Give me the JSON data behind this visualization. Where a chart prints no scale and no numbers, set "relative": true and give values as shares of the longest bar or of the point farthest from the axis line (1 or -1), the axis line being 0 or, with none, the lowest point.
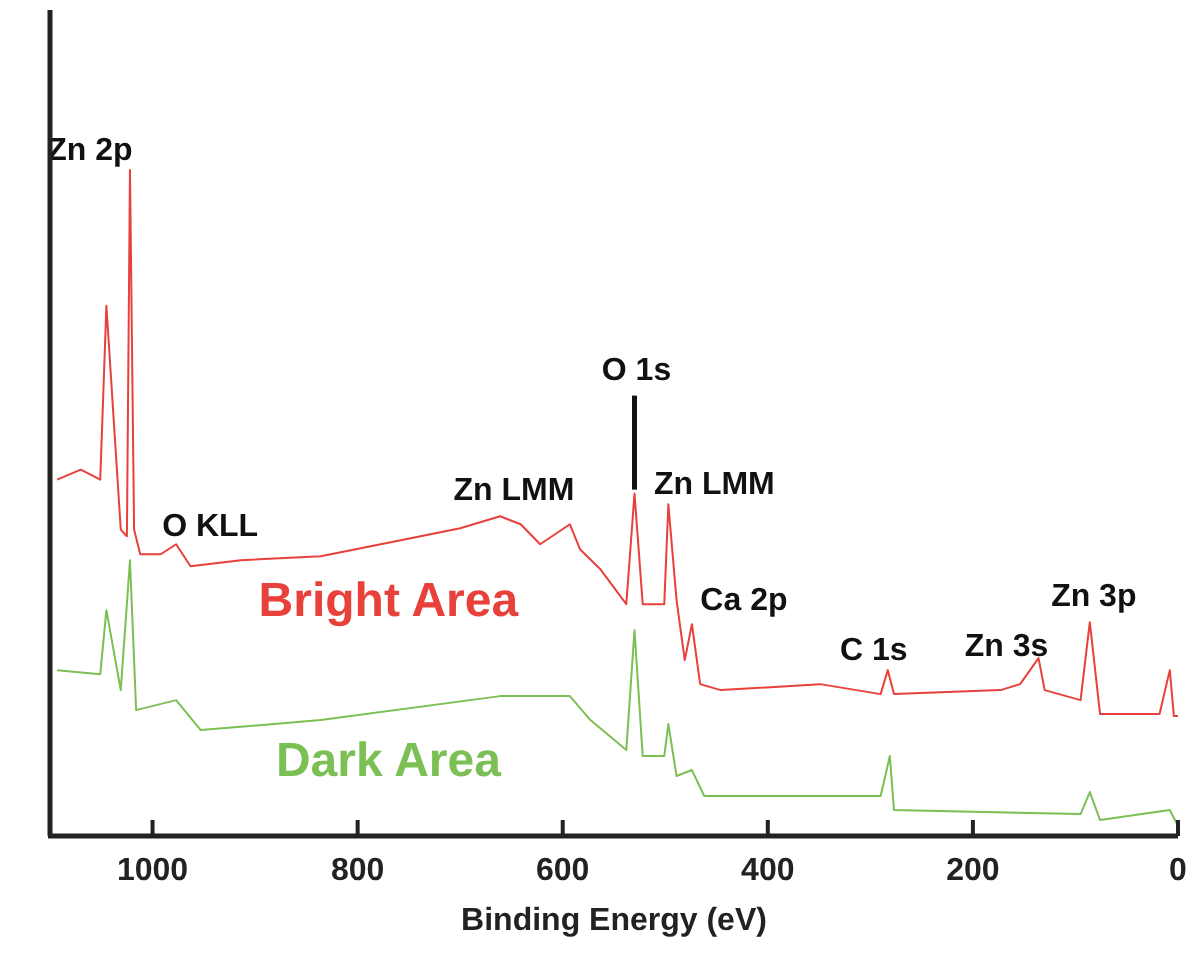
{
  "chart_data": {
    "type": "line",
    "relative": true,
    "xlabel": "Binding Energy (eV)",
    "xlim": [
      1100,
      0
    ],
    "xticks": [
      1000,
      800,
      600,
      400,
      200,
      0
    ],
    "tick_labels": "x",
    "grid": false,
    "marker": "none",
    "line_style": "solid",
    "series": [
      {
        "name": "Bright Area",
        "color": "#e8403a",
        "x": [
          1093,
          1070,
          1051,
          1045,
          1031,
          1025,
          1022,
          1018,
          1012,
          992,
          977,
          963,
          914,
          836,
          758,
          700,
          661,
          641,
          622,
          593,
          583,
          563,
          538,
          530,
          522,
          501,
          497,
          489,
          481,
          474,
          466,
          446,
          349,
          290,
          283,
          277,
          173,
          154,
          136,
          130,
          95,
          86,
          76,
          18,
          8,
          4,
          0
        ],
        "values": [
          0.535,
          0.55,
          0.535,
          0.796,
          0.46,
          0.45,
          1,
          0.46,
          0.423,
          0.423,
          0.438,
          0.405,
          0.414,
          0.42,
          0.444,
          0.462,
          0.48,
          0.468,
          0.438,
          0.468,
          0.43,
          0.4,
          0.348,
          0.514,
          0.348,
          0.348,
          0.498,
          0.354,
          0.264,
          0.318,
          0.228,
          0.219,
          0.228,
          0.213,
          0.249,
          0.213,
          0.219,
          0.228,
          0.267,
          0.219,
          0.204,
          0.321,
          0.183,
          0.183,
          0.249,
          0.18,
          0.18
        ]
      },
      {
        "name": "Dark Area",
        "color": "#7cbf55",
        "x": [
          1093,
          1051,
          1045,
          1031,
          1022,
          1016,
          977,
          953,
          836,
          661,
          593,
          573,
          538,
          530,
          522,
          501,
          497,
          489,
          474,
          462,
          290,
          281,
          277,
          95,
          86,
          76,
          8,
          0
        ],
        "values": [
          0.249,
          0.243,
          0.339,
          0.219,
          0.414,
          0.189,
          0.204,
          0.159,
          0.174,
          0.21,
          0.21,
          0.174,
          0.129,
          0.309,
          0.12,
          0.12,
          0.168,
          0.09,
          0.099,
          0.06,
          0.06,
          0.12,
          0.039,
          0.033,
          0.066,
          0.024,
          0.039,
          0.015
        ]
      }
    ],
    "annotations": [
      {
        "text": "Zn 2p",
        "x": 1022,
        "y": 1
      },
      {
        "text": "O KLL",
        "x": 977,
        "y": 0.438
      },
      {
        "text": "Zn LMM",
        "x": 593,
        "y": 0.468
      },
      {
        "text": "O 1s",
        "x": 530,
        "y": 0.514
      },
      {
        "text": "Zn LMM",
        "x": 497,
        "y": 0.498
      },
      {
        "text": "Ca 2p",
        "x": 474,
        "y": 0.318
      },
      {
        "text": "C 1s",
        "x": 283,
        "y": 0.249
      },
      {
        "text": "Zn 3s",
        "x": 136,
        "y": 0.267
      },
      {
        "text": "Zn 3p",
        "x": 86,
        "y": 0.321
      }
    ]
  }
}
